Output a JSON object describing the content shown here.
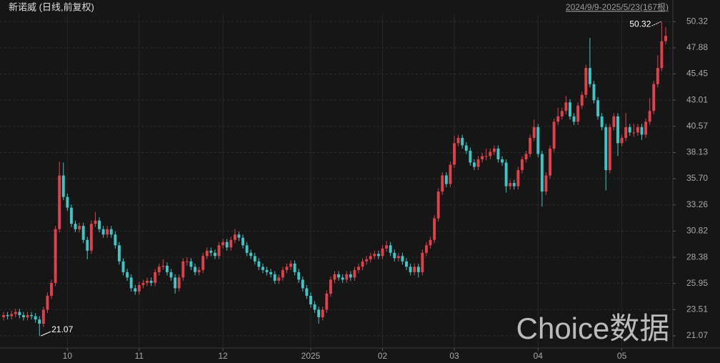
{
  "chart_data": {
    "type": "candlestick",
    "title": "新诺威 (日线,前复权)",
    "subtitle": "2024/9/9-2025/5/23(167根)",
    "watermark": "Choice数据",
    "up_color": "#e0404a",
    "down_color": "#3fc5c5",
    "ylim": [
      19.94,
      51.0
    ],
    "yticks": [
      21.07,
      23.51,
      25.95,
      28.38,
      30.82,
      33.26,
      {
        "value": 35.7,
        "label": "35.70"
      },
      38.13,
      40.57,
      43.01,
      45.45,
      47.88,
      50.32
    ],
    "grid": true,
    "low_label": 21.07,
    "high_label": 50.32,
    "categories": [
      null,
      null,
      null,
      null,
      null,
      null,
      null,
      null,
      null,
      null,
      null,
      null,
      null,
      null,
      null,
      null,
      "10",
      null,
      null,
      null,
      null,
      null,
      null,
      null,
      null,
      null,
      null,
      null,
      null,
      null,
      null,
      null,
      null,
      null,
      "11",
      null,
      null,
      null,
      null,
      null,
      null,
      null,
      null,
      null,
      null,
      null,
      null,
      null,
      null,
      null,
      null,
      null,
      null,
      null,
      null,
      "12",
      null,
      null,
      null,
      null,
      null,
      null,
      null,
      null,
      null,
      null,
      null,
      null,
      null,
      null,
      null,
      null,
      null,
      null,
      null,
      null,
      null,
      "2025",
      null,
      null,
      null,
      null,
      null,
      null,
      null,
      null,
      null,
      null,
      null,
      null,
      null,
      null,
      null,
      null,
      null,
      "02",
      null,
      null,
      null,
      null,
      null,
      null,
      null,
      null,
      null,
      null,
      null,
      null,
      null,
      null,
      null,
      null,
      null,
      "03",
      null,
      null,
      null,
      null,
      null,
      null,
      null,
      null,
      null,
      null,
      null,
      null,
      null,
      null,
      null,
      null,
      null,
      null,
      null,
      null,
      "04",
      null,
      null,
      null,
      null,
      null,
      null,
      null,
      null,
      null,
      null,
      null,
      null,
      null,
      null,
      null,
      null,
      null,
      null,
      null,
      null,
      "05",
      null,
      null,
      null,
      null,
      null,
      null,
      null,
      null,
      null,
      null,
      null
    ],
    "candles": [
      [
        22.8,
        23.3,
        22.5,
        23.0
      ],
      [
        23.0,
        23.3,
        22.6,
        22.9
      ],
      [
        22.9,
        23.4,
        22.6,
        23.1
      ],
      [
        23.1,
        23.6,
        22.8,
        23.3
      ],
      [
        23.3,
        23.6,
        22.7,
        23.0
      ],
      [
        23.0,
        23.3,
        22.5,
        22.8
      ],
      [
        22.8,
        23.3,
        22.5,
        23.0
      ],
      [
        23.0,
        23.3,
        22.6,
        22.9
      ],
      [
        22.9,
        23.2,
        22.3,
        22.6
      ],
      [
        22.6,
        22.9,
        21.07,
        22.2
      ],
      [
        22.2,
        23.8,
        21.9,
        23.5
      ],
      [
        23.5,
        25.1,
        23.2,
        24.8
      ],
      [
        24.8,
        26.3,
        24.5,
        26.0
      ],
      [
        26.0,
        31.3,
        25.7,
        31.0
      ],
      [
        31.0,
        37.3,
        30.7,
        36.0
      ],
      [
        36.0,
        37.2,
        33.7,
        34.0
      ],
      [
        34.0,
        34.3,
        32.7,
        33.0
      ],
      [
        33.0,
        33.3,
        31.2,
        31.5
      ],
      [
        31.5,
        31.8,
        30.7,
        31.0
      ],
      [
        31.0,
        31.6,
        30.7,
        31.3
      ],
      [
        31.3,
        31.6,
        29.7,
        30.0
      ],
      [
        30.0,
        30.3,
        28.2,
        29.0
      ],
      [
        29.0,
        31.8,
        28.7,
        31.5
      ],
      [
        31.5,
        32.6,
        31.2,
        31.8
      ],
      [
        31.8,
        32.1,
        30.7,
        31.0
      ],
      [
        31.0,
        31.3,
        30.2,
        30.5
      ],
      [
        30.5,
        31.3,
        30.2,
        31.0
      ],
      [
        31.0,
        31.3,
        30.2,
        30.5
      ],
      [
        30.5,
        30.8,
        29.2,
        29.5
      ],
      [
        29.5,
        29.8,
        27.7,
        28.0
      ],
      [
        28.0,
        28.3,
        26.7,
        27.0
      ],
      [
        27.0,
        27.3,
        26.2,
        26.5
      ],
      [
        26.5,
        26.8,
        25.2,
        25.5
      ],
      [
        25.5,
        25.8,
        24.9,
        25.2
      ],
      [
        25.2,
        26.1,
        24.9,
        25.8
      ],
      [
        25.8,
        26.3,
        25.5,
        26.0
      ],
      [
        26.0,
        26.5,
        25.7,
        26.2
      ],
      [
        26.2,
        26.5,
        25.7,
        26.0
      ],
      [
        26.0,
        27.3,
        25.7,
        27.0
      ],
      [
        27.0,
        27.8,
        26.7,
        27.5
      ],
      [
        27.5,
        28.2,
        27.2,
        27.6
      ],
      [
        27.6,
        27.9,
        26.7,
        27.0
      ],
      [
        27.0,
        27.3,
        26.2,
        26.5
      ],
      [
        26.5,
        26.8,
        25.0,
        25.5
      ],
      [
        25.5,
        26.8,
        25.2,
        26.5
      ],
      [
        26.5,
        28.3,
        26.2,
        28.0
      ],
      [
        28.0,
        28.4,
        27.6,
        28.0
      ],
      [
        28.0,
        28.3,
        27.2,
        27.5
      ],
      [
        27.5,
        27.8,
        26.7,
        27.0
      ],
      [
        27.0,
        27.5,
        26.7,
        27.2
      ],
      [
        27.2,
        28.8,
        26.9,
        28.5
      ],
      [
        28.5,
        29.3,
        28.2,
        29.0
      ],
      [
        29.0,
        29.3,
        28.5,
        28.8
      ],
      [
        28.8,
        29.1,
        28.2,
        28.5
      ],
      [
        28.5,
        29.8,
        28.2,
        29.5
      ],
      [
        29.5,
        30.1,
        29.2,
        29.8
      ],
      [
        29.8,
        30.1,
        29.0,
        29.3
      ],
      [
        29.3,
        30.3,
        29.0,
        30.0
      ],
      [
        30.0,
        31.0,
        29.7,
        30.5
      ],
      [
        30.5,
        30.8,
        29.9,
        30.2
      ],
      [
        30.2,
        30.5,
        29.2,
        29.5
      ],
      [
        29.5,
        29.8,
        28.5,
        28.8
      ],
      [
        28.8,
        29.1,
        28.2,
        28.5
      ],
      [
        28.5,
        28.8,
        27.7,
        28.0
      ],
      [
        28.0,
        28.3,
        27.2,
        27.5
      ],
      [
        27.5,
        27.8,
        26.9,
        27.2
      ],
      [
        27.2,
        27.5,
        26.7,
        27.0
      ],
      [
        27.0,
        27.3,
        26.5,
        26.8
      ],
      [
        26.8,
        27.1,
        25.9,
        26.2
      ],
      [
        26.2,
        26.8,
        25.9,
        26.5
      ],
      [
        26.5,
        27.5,
        26.2,
        27.2
      ],
      [
        27.2,
        27.8,
        26.9,
        27.5
      ],
      [
        27.5,
        28.1,
        27.2,
        27.8
      ],
      [
        27.8,
        28.1,
        26.7,
        27.0
      ],
      [
        27.0,
        27.3,
        26.0,
        26.3
      ],
      [
        26.3,
        26.6,
        25.2,
        25.5
      ],
      [
        25.5,
        25.8,
        24.5,
        24.8
      ],
      [
        24.8,
        25.1,
        23.7,
        24.0
      ],
      [
        24.0,
        24.3,
        23.2,
        23.5
      ],
      [
        23.5,
        23.8,
        22.2,
        22.8
      ],
      [
        22.8,
        23.8,
        22.5,
        23.5
      ],
      [
        23.5,
        25.3,
        23.2,
        25.0
      ],
      [
        25.0,
        26.6,
        24.7,
        26.3
      ],
      [
        26.3,
        27.1,
        26.0,
        26.8
      ],
      [
        26.8,
        27.1,
        26.2,
        26.5
      ],
      [
        26.5,
        26.8,
        26.0,
        26.3
      ],
      [
        26.3,
        27.1,
        26.0,
        26.8
      ],
      [
        26.8,
        27.1,
        26.2,
        26.5
      ],
      [
        26.5,
        27.5,
        26.2,
        27.2
      ],
      [
        27.2,
        27.8,
        26.9,
        27.5
      ],
      [
        27.5,
        28.3,
        27.2,
        28.0
      ],
      [
        28.0,
        28.5,
        27.7,
        28.2
      ],
      [
        28.2,
        28.8,
        27.9,
        28.5
      ],
      [
        28.5,
        29.0,
        28.2,
        28.7
      ],
      [
        28.7,
        29.0,
        28.2,
        28.5
      ],
      [
        28.5,
        29.5,
        28.2,
        29.2
      ],
      [
        29.2,
        29.9,
        28.9,
        29.5
      ],
      [
        29.5,
        29.8,
        28.5,
        28.8
      ],
      [
        28.8,
        29.1,
        28.0,
        28.3
      ],
      [
        28.3,
        28.8,
        28.0,
        28.5
      ],
      [
        28.5,
        28.8,
        27.7,
        28.0
      ],
      [
        28.0,
        28.3,
        27.2,
        27.5
      ],
      [
        27.5,
        27.8,
        26.7,
        27.0
      ],
      [
        27.0,
        27.8,
        26.7,
        27.5
      ],
      [
        27.5,
        27.8,
        26.5,
        27.0
      ],
      [
        27.0,
        29.1,
        26.7,
        28.8
      ],
      [
        28.8,
        29.8,
        28.5,
        29.5
      ],
      [
        29.5,
        30.3,
        29.2,
        30.0
      ],
      [
        30.0,
        32.3,
        29.7,
        32.0
      ],
      [
        32.0,
        34.8,
        31.7,
        34.5
      ],
      [
        34.5,
        36.3,
        34.2,
        36.0
      ],
      [
        36.0,
        36.3,
        34.9,
        35.2
      ],
      [
        35.2,
        37.3,
        34.9,
        37.0
      ],
      [
        37.0,
        39.7,
        36.7,
        39.0
      ],
      [
        39.0,
        39.8,
        38.7,
        39.5
      ],
      [
        39.5,
        39.8,
        38.5,
        38.8
      ],
      [
        38.8,
        39.1,
        38.0,
        38.3
      ],
      [
        38.3,
        38.6,
        36.9,
        37.2
      ],
      [
        37.2,
        37.5,
        36.5,
        36.8
      ],
      [
        36.8,
        37.8,
        36.5,
        37.5
      ],
      [
        37.5,
        38.1,
        37.2,
        37.8
      ],
      [
        37.8,
        38.5,
        37.4,
        37.8
      ],
      [
        37.8,
        38.5,
        37.5,
        38.2
      ],
      [
        38.2,
        38.8,
        37.9,
        38.5
      ],
      [
        38.5,
        38.8,
        37.2,
        37.5
      ],
      [
        37.5,
        37.8,
        36.9,
        37.2
      ],
      [
        37.2,
        37.5,
        34.4,
        35.0
      ],
      [
        35.0,
        35.6,
        34.7,
        35.3
      ],
      [
        35.3,
        35.6,
        34.7,
        35.0
      ],
      [
        35.0,
        36.8,
        34.7,
        36.5
      ],
      [
        36.5,
        37.8,
        36.2,
        37.5
      ],
      [
        37.5,
        38.3,
        37.2,
        38.0
      ],
      [
        38.0,
        39.8,
        37.7,
        39.5
      ],
      [
        39.5,
        41.2,
        39.2,
        40.5
      ],
      [
        40.5,
        40.8,
        37.7,
        38.0
      ],
      [
        38.0,
        38.3,
        33.1,
        34.5
      ],
      [
        34.5,
        36.3,
        34.2,
        36.0
      ],
      [
        36.0,
        38.8,
        35.7,
        38.5
      ],
      [
        38.5,
        41.3,
        38.2,
        41.0
      ],
      [
        41.0,
        42.3,
        40.7,
        41.5
      ],
      [
        41.5,
        42.3,
        41.2,
        42.0
      ],
      [
        42.0,
        43.4,
        41.7,
        42.8
      ],
      [
        42.8,
        43.1,
        41.2,
        41.5
      ],
      [
        41.5,
        41.8,
        40.7,
        41.0
      ],
      [
        41.0,
        42.8,
        40.7,
        42.5
      ],
      [
        42.5,
        43.8,
        42.2,
        43.5
      ],
      [
        43.5,
        46.3,
        43.2,
        46.0
      ],
      [
        46.0,
        48.8,
        44.2,
        44.5
      ],
      [
        44.5,
        44.8,
        42.7,
        43.0
      ],
      [
        43.0,
        43.3,
        41.2,
        41.5
      ],
      [
        41.5,
        41.8,
        40.2,
        40.5
      ],
      [
        40.5,
        40.8,
        34.6,
        36.5
      ],
      [
        36.5,
        40.8,
        36.2,
        40.5
      ],
      [
        40.5,
        41.8,
        40.2,
        41.5
      ],
      [
        41.5,
        41.8,
        37.8,
        39.0
      ],
      [
        39.0,
        39.8,
        38.7,
        39.5
      ],
      [
        39.5,
        41.8,
        39.2,
        40.5
      ],
      [
        40.5,
        40.8,
        39.7,
        40.0
      ],
      [
        40.0,
        40.8,
        39.6,
        40.0
      ],
      [
        40.0,
        40.8,
        39.7,
        40.5
      ],
      [
        40.5,
        40.8,
        39.3,
        39.8
      ],
      [
        39.8,
        41.3,
        39.5,
        41.0
      ],
      [
        41.0,
        43.2,
        40.7,
        42.0
      ],
      [
        42.0,
        44.8,
        41.7,
        44.5
      ],
      [
        44.5,
        47.2,
        44.2,
        46.0
      ],
      [
        46.0,
        50.32,
        45.7,
        48.5
      ],
      [
        48.5,
        49.8,
        48.2,
        49.0
      ]
    ]
  }
}
